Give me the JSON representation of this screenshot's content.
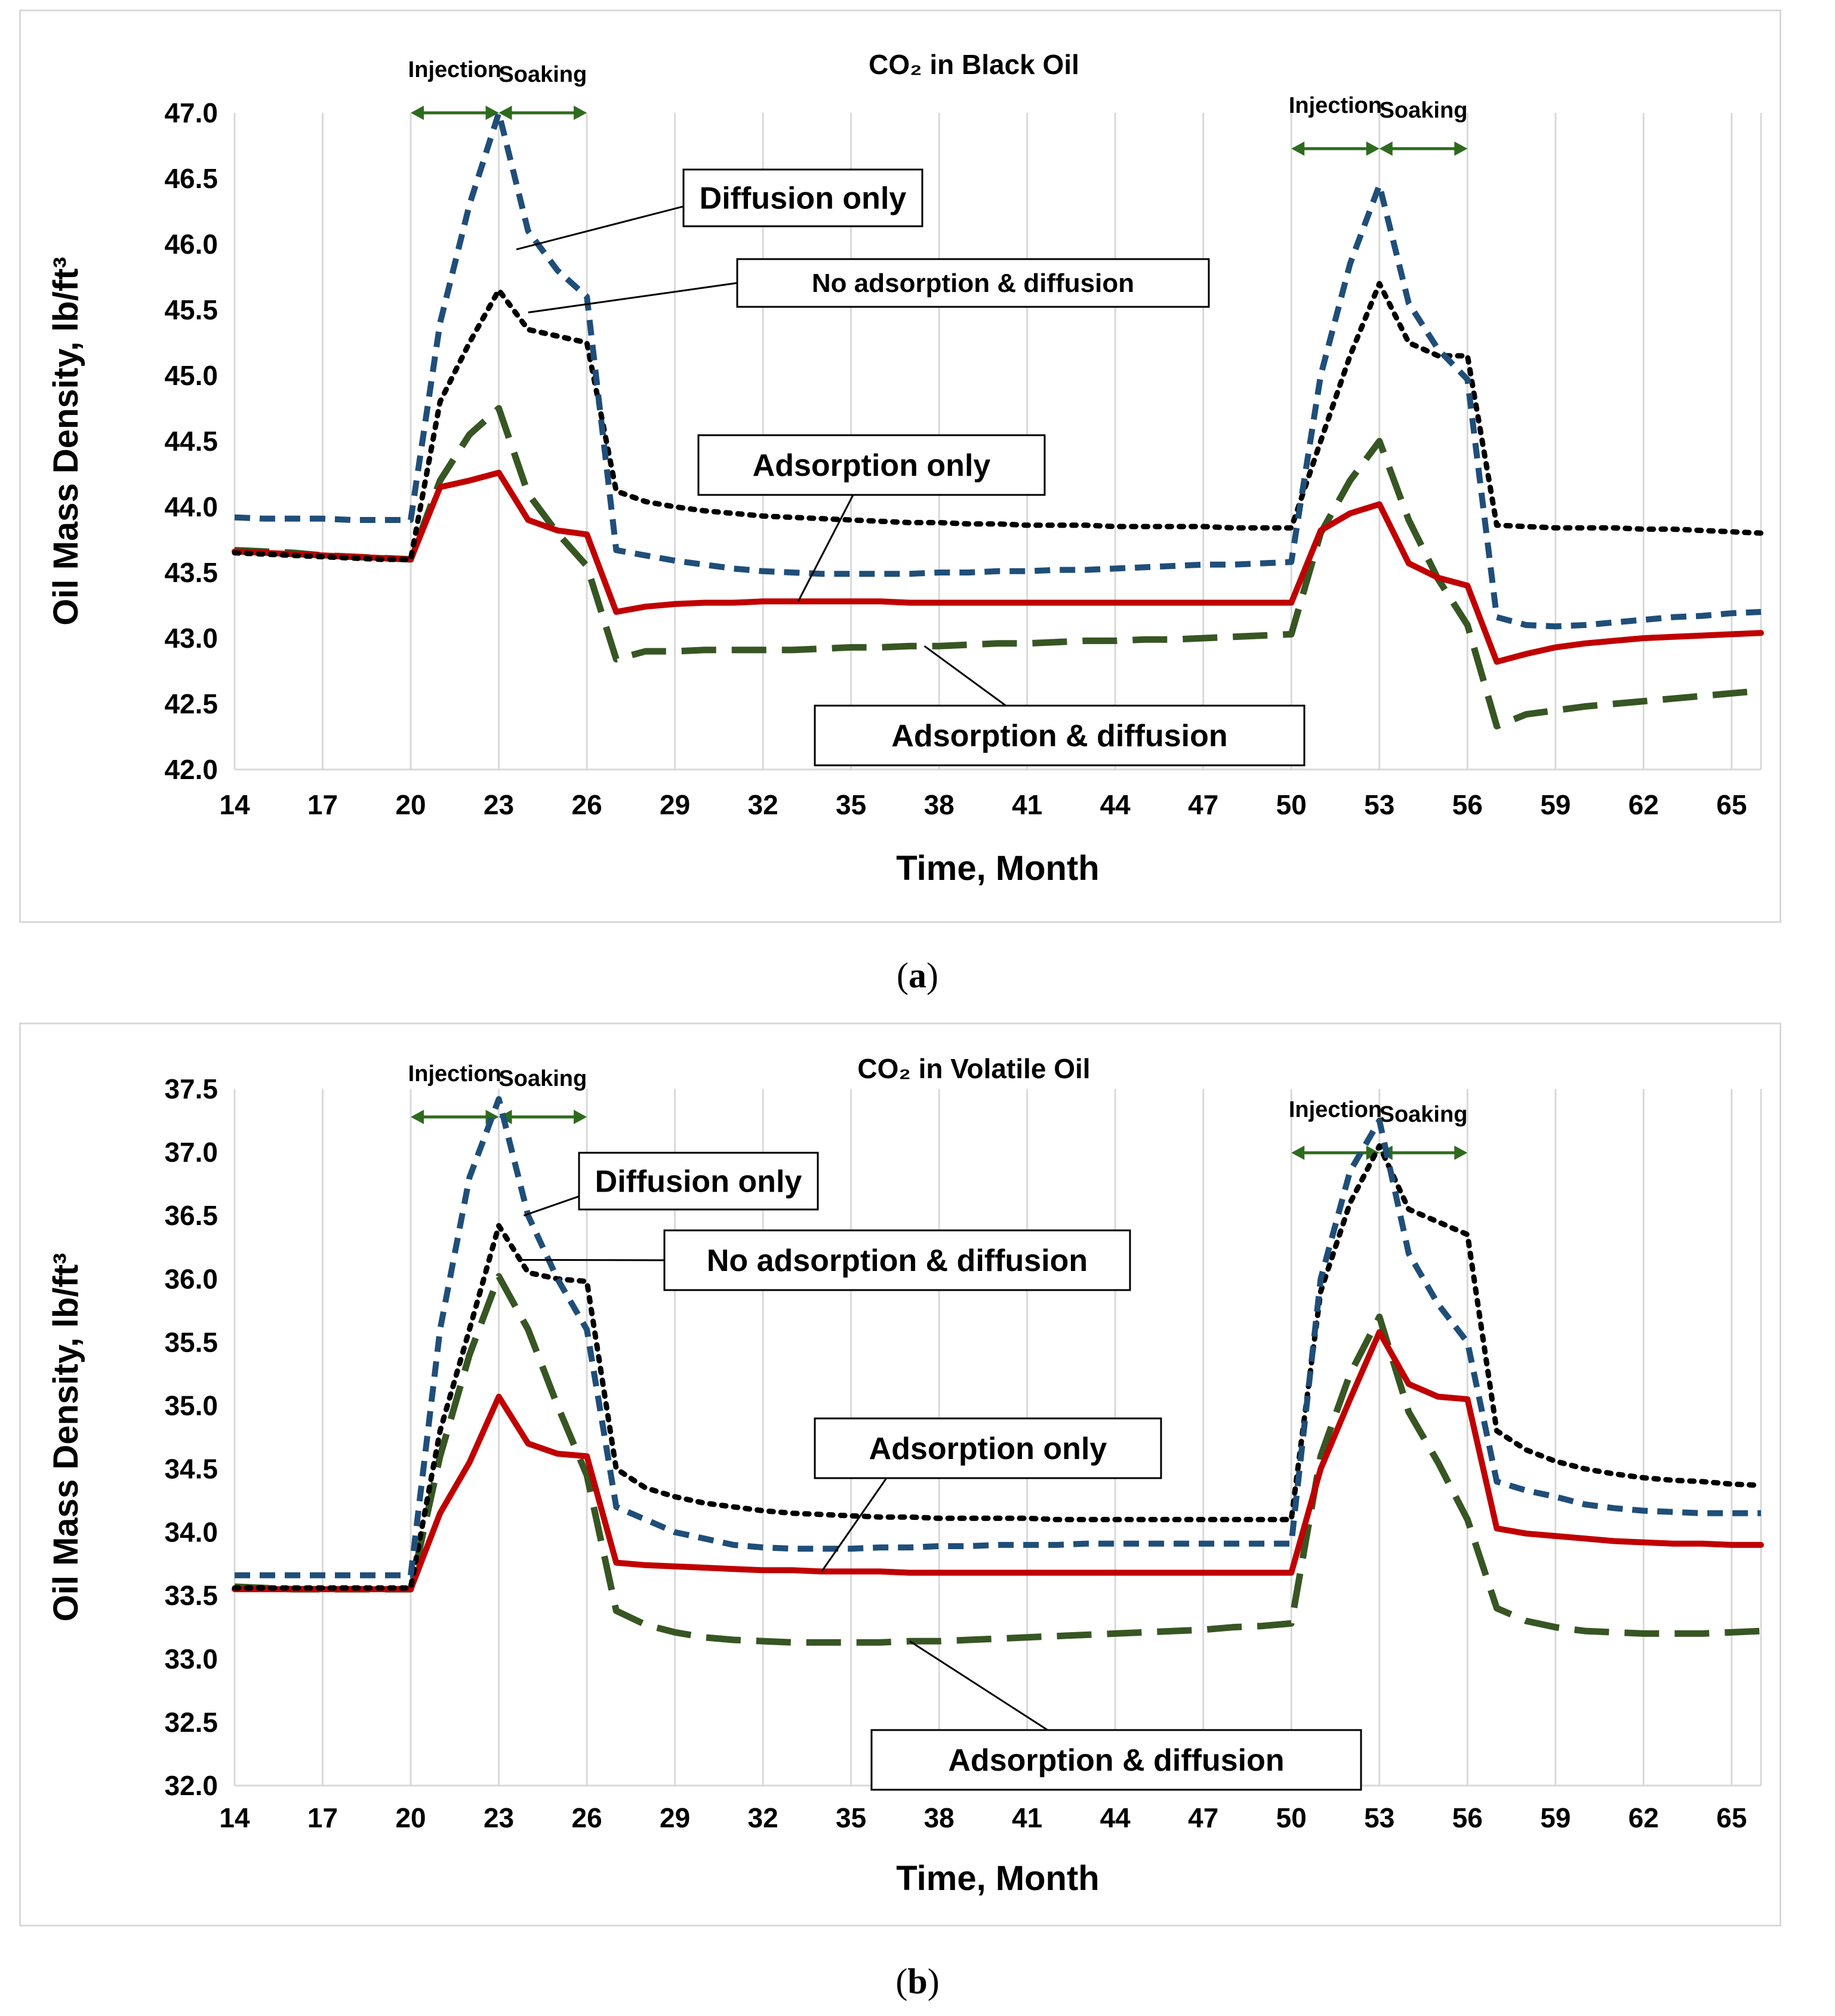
{
  "figure": {
    "caption_a": {
      "open": "(",
      "label": "a",
      "close": ")"
    },
    "caption_b": {
      "open": "(",
      "label": "b",
      "close": ")"
    }
  },
  "colors": {
    "diffusion_only": "#1f4e79",
    "no_adsorption": "#000000",
    "adsorption_only": "#c00000",
    "adsorption_diffusion": "#375623",
    "phase_arrow": "#2e6b1e",
    "grid": "#d9d9d9"
  },
  "chart_data": [
    {
      "id": "a",
      "type": "line",
      "title": "CO₂ in Black Oil",
      "xlabel": "Time, Month",
      "ylabel": "Oil Mass Density, lb/ft³",
      "xlim": [
        14,
        66
      ],
      "ylim": [
        42.0,
        47.0
      ],
      "xticks": [
        14,
        17,
        20,
        23,
        26,
        29,
        32,
        35,
        38,
        41,
        44,
        47,
        50,
        53,
        56,
        59,
        62,
        65
      ],
      "yticks": [
        42.0,
        42.5,
        43.0,
        43.5,
        44.0,
        44.5,
        45.0,
        45.5,
        46.0,
        46.5,
        47.0
      ],
      "ytick_labels": [
        "42.0",
        "42.5",
        "43.0",
        "43.5",
        "44.0",
        "44.5",
        "45.0",
        "45.5",
        "46.0",
        "46.5",
        "47.0"
      ],
      "grid": "vertical",
      "phases": [
        {
          "label": "Injection",
          "from": 20,
          "to": 23
        },
        {
          "label": "Soaking",
          "from": 23,
          "to": 26
        },
        {
          "label": "Injection",
          "from": 50,
          "to": 53
        },
        {
          "label": "Soaking",
          "from": 53,
          "to": 56
        }
      ],
      "x": [
        14,
        15,
        16,
        17,
        18,
        19,
        20,
        21,
        22,
        23,
        24,
        25,
        26,
        27,
        28,
        29,
        30,
        31,
        32,
        33,
        34,
        35,
        36,
        37,
        38,
        39,
        40,
        41,
        42,
        43,
        44,
        45,
        46,
        47,
        48,
        49,
        50,
        51,
        52,
        53,
        54,
        55,
        56,
        57,
        58,
        59,
        60,
        61,
        62,
        63,
        64,
        65,
        66
      ],
      "series": [
        {
          "key": "diffusion_only",
          "name": "Diffusion only",
          "style": "dashed",
          "values": [
            43.92,
            43.91,
            43.91,
            43.91,
            43.9,
            43.9,
            43.9,
            45.4,
            46.3,
            47.0,
            46.1,
            45.8,
            45.6,
            43.67,
            43.63,
            43.59,
            43.56,
            43.53,
            43.51,
            43.5,
            43.49,
            43.49,
            43.49,
            43.49,
            43.5,
            43.5,
            43.51,
            43.51,
            43.52,
            43.52,
            43.53,
            43.54,
            43.55,
            43.56,
            43.56,
            43.57,
            43.58,
            45.0,
            45.85,
            46.45,
            45.55,
            45.2,
            44.97,
            43.16,
            43.1,
            43.09,
            43.1,
            43.12,
            43.14,
            43.16,
            43.17,
            43.19,
            43.2
          ]
        },
        {
          "key": "no_adsorption",
          "name": "No adsorption & diffusion",
          "style": "dotted",
          "values": [
            43.65,
            43.64,
            43.63,
            43.62,
            43.61,
            43.6,
            43.6,
            44.8,
            45.25,
            45.65,
            45.35,
            45.3,
            45.25,
            44.12,
            44.04,
            44.0,
            43.97,
            43.95,
            43.93,
            43.92,
            43.91,
            43.9,
            43.89,
            43.88,
            43.88,
            43.87,
            43.87,
            43.86,
            43.86,
            43.86,
            43.85,
            43.85,
            43.85,
            43.85,
            43.84,
            43.84,
            43.84,
            44.5,
            45.15,
            45.7,
            45.25,
            45.15,
            45.15,
            43.86,
            43.85,
            43.84,
            43.84,
            43.84,
            43.83,
            43.83,
            43.82,
            43.81,
            43.8
          ]
        },
        {
          "key": "adsorption_only",
          "name": "Adsorption only",
          "style": "solid",
          "values": [
            43.66,
            43.65,
            43.64,
            43.63,
            43.62,
            43.61,
            43.6,
            44.15,
            44.2,
            44.26,
            43.9,
            43.82,
            43.79,
            43.2,
            43.24,
            43.26,
            43.27,
            43.27,
            43.28,
            43.28,
            43.28,
            43.28,
            43.28,
            43.27,
            43.27,
            43.27,
            43.27,
            43.27,
            43.27,
            43.27,
            43.27,
            43.27,
            43.27,
            43.27,
            43.27,
            43.27,
            43.27,
            43.82,
            43.95,
            44.02,
            43.57,
            43.46,
            43.4,
            42.82,
            42.88,
            42.93,
            42.96,
            42.98,
            43.0,
            43.01,
            43.02,
            43.03,
            43.04
          ]
        },
        {
          "key": "adsorption_diffusion",
          "name": "Adsorption & diffusion",
          "style": "longdash",
          "values": [
            43.67,
            43.66,
            43.65,
            43.63,
            43.62,
            43.61,
            43.6,
            44.2,
            44.55,
            44.75,
            44.1,
            43.8,
            43.55,
            42.84,
            42.9,
            42.9,
            42.91,
            42.91,
            42.91,
            42.91,
            42.92,
            42.93,
            42.93,
            42.94,
            42.94,
            42.95,
            42.96,
            42.96,
            42.97,
            42.98,
            42.98,
            42.99,
            42.99,
            43.0,
            43.01,
            43.02,
            43.03,
            43.8,
            44.2,
            44.5,
            43.9,
            43.45,
            43.1,
            42.33,
            42.42,
            42.45,
            42.48,
            42.5,
            42.52,
            42.54,
            42.56,
            42.58,
            42.6
          ]
        }
      ],
      "annotations": [
        {
          "key": "diffusion_only",
          "text": "Diffusion only",
          "at_x": 23.6,
          "at_y": 45.96
        },
        {
          "key": "no_adsorption",
          "text": "No adsorption & diffusion",
          "at_x": 24.0,
          "at_y": 45.48
        },
        {
          "key": "adsorption_only",
          "text": "Adsorption only",
          "at_x": 33.2,
          "at_y": 43.28
        },
        {
          "key": "adsorption_diffusion",
          "text": "Adsorption & diffusion",
          "at_x": 37.5,
          "at_y": 42.94
        }
      ]
    },
    {
      "id": "b",
      "type": "line",
      "title": "CO₂ in Volatile Oil",
      "xlabel": "Time, Month",
      "ylabel": "Oil Mass Density, lb/ft³",
      "xlim": [
        14,
        66
      ],
      "ylim": [
        32.0,
        37.5
      ],
      "xticks": [
        14,
        17,
        20,
        23,
        26,
        29,
        32,
        35,
        38,
        41,
        44,
        47,
        50,
        53,
        56,
        59,
        62,
        65
      ],
      "yticks": [
        32.0,
        32.5,
        33.0,
        33.5,
        34.0,
        34.5,
        35.0,
        35.5,
        36.0,
        36.5,
        37.0,
        37.5
      ],
      "ytick_labels": [
        "32.0",
        "32.5",
        "33.0",
        "33.5",
        "34.0",
        "34.5",
        "35.0",
        "35.5",
        "36.0",
        "36.5",
        "37.0",
        "37.5"
      ],
      "grid": "vertical",
      "phases": [
        {
          "label": "Injection",
          "from": 20,
          "to": 23
        },
        {
          "label": "Soaking",
          "from": 23,
          "to": 26
        },
        {
          "label": "Injection",
          "from": 50,
          "to": 53
        },
        {
          "label": "Soaking",
          "from": 53,
          "to": 56
        }
      ],
      "x": [
        14,
        15,
        16,
        17,
        18,
        19,
        20,
        21,
        22,
        23,
        24,
        25,
        26,
        27,
        28,
        29,
        30,
        31,
        32,
        33,
        34,
        35,
        36,
        37,
        38,
        39,
        40,
        41,
        42,
        43,
        44,
        45,
        46,
        47,
        48,
        49,
        50,
        51,
        52,
        53,
        54,
        55,
        56,
        57,
        58,
        59,
        60,
        61,
        62,
        63,
        64,
        65,
        66
      ],
      "series": [
        {
          "key": "diffusion_only",
          "name": "Diffusion only",
          "style": "dashed",
          "values": [
            33.66,
            33.66,
            33.66,
            33.66,
            33.66,
            33.66,
            33.66,
            35.6,
            36.8,
            37.42,
            36.5,
            36.0,
            35.6,
            34.2,
            34.1,
            34.0,
            33.95,
            33.9,
            33.88,
            33.87,
            33.87,
            33.87,
            33.88,
            33.88,
            33.89,
            33.89,
            33.9,
            33.9,
            33.9,
            33.91,
            33.91,
            33.91,
            33.91,
            33.91,
            33.91,
            33.91,
            33.91,
            36.0,
            36.85,
            37.25,
            36.2,
            35.8,
            35.5,
            34.4,
            34.33,
            34.28,
            34.22,
            34.19,
            34.17,
            34.16,
            34.15,
            34.15,
            34.15
          ]
        },
        {
          "key": "no_adsorption",
          "name": "No adsorption & diffusion",
          "style": "dotted",
          "values": [
            33.56,
            33.56,
            33.56,
            33.56,
            33.56,
            33.56,
            33.56,
            34.8,
            35.6,
            36.42,
            36.05,
            36.0,
            35.98,
            34.5,
            34.35,
            34.28,
            34.23,
            34.2,
            34.17,
            34.15,
            34.14,
            34.13,
            34.12,
            34.12,
            34.11,
            34.11,
            34.11,
            34.11,
            34.1,
            34.1,
            34.1,
            34.1,
            34.1,
            34.1,
            34.1,
            34.1,
            34.1,
            35.9,
            36.6,
            37.05,
            36.55,
            36.45,
            36.35,
            34.8,
            34.65,
            34.56,
            34.5,
            34.46,
            34.43,
            34.41,
            34.4,
            34.38,
            34.37
          ]
        },
        {
          "key": "adsorption_only",
          "name": "Adsorption only",
          "style": "solid",
          "values": [
            33.55,
            33.55,
            33.55,
            33.55,
            33.55,
            33.55,
            33.55,
            34.15,
            34.55,
            35.07,
            34.7,
            34.62,
            34.6,
            33.76,
            33.74,
            33.73,
            33.72,
            33.71,
            33.7,
            33.7,
            33.69,
            33.69,
            33.69,
            33.68,
            33.68,
            33.68,
            33.68,
            33.68,
            33.68,
            33.68,
            33.68,
            33.68,
            33.68,
            33.68,
            33.68,
            33.68,
            33.68,
            34.5,
            35.05,
            35.58,
            35.17,
            35.07,
            35.05,
            34.03,
            33.99,
            33.97,
            33.95,
            33.93,
            33.92,
            33.91,
            33.91,
            33.9,
            33.9
          ]
        },
        {
          "key": "adsorption_diffusion",
          "name": "Adsorption & diffusion",
          "style": "longdash",
          "values": [
            33.57,
            33.56,
            33.55,
            33.55,
            33.55,
            33.55,
            33.55,
            34.6,
            35.4,
            36.02,
            35.6,
            35.0,
            34.45,
            33.38,
            33.27,
            33.21,
            33.17,
            33.15,
            33.14,
            33.13,
            33.13,
            33.13,
            33.13,
            33.14,
            33.14,
            33.15,
            33.16,
            33.17,
            33.18,
            33.19,
            33.2,
            33.21,
            33.22,
            33.23,
            33.25,
            33.26,
            33.28,
            34.6,
            35.25,
            35.7,
            34.95,
            34.55,
            34.1,
            33.4,
            33.3,
            33.25,
            33.22,
            33.21,
            33.2,
            33.2,
            33.2,
            33.21,
            33.22
          ]
        }
      ],
      "annotations": [
        {
          "key": "diffusion_only",
          "text": "Diffusion only",
          "at_x": 23.85,
          "at_y": 36.5
        },
        {
          "key": "no_adsorption",
          "text": "No adsorption & diffusion",
          "at_x": 23.8,
          "at_y": 36.15
        },
        {
          "key": "adsorption_only",
          "text": "Adsorption only",
          "at_x": 34.0,
          "at_y": 33.69
        },
        {
          "key": "adsorption_diffusion",
          "text": "Adsorption & diffusion",
          "at_x": 37.0,
          "at_y": 33.14
        }
      ]
    }
  ]
}
